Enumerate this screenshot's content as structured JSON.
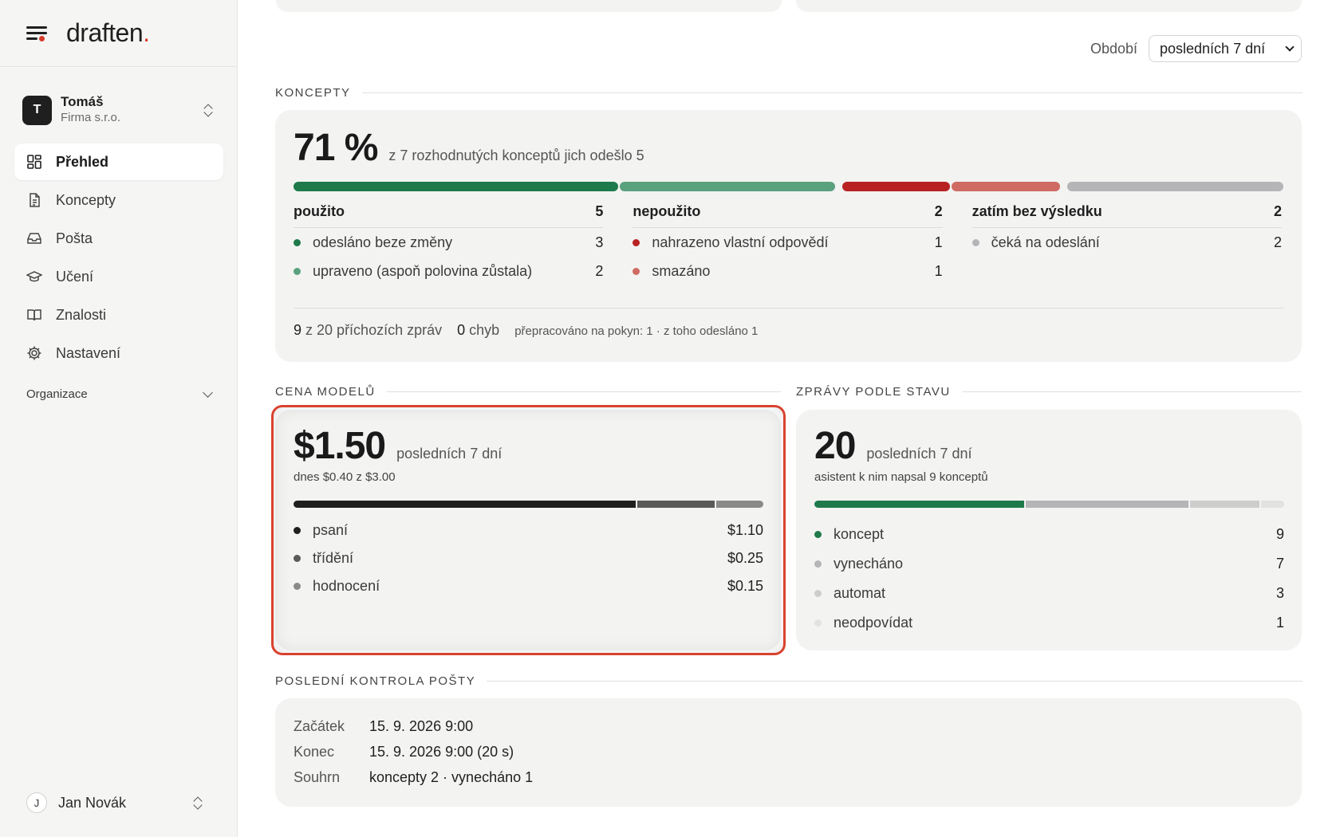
{
  "brand": {
    "name": "draften",
    "dot": "."
  },
  "account": {
    "initial": "T",
    "name": "Tomáš",
    "company": "Firma s.r.o."
  },
  "nav": [
    {
      "label": "Přehled",
      "icon": "dashboard-icon",
      "active": true
    },
    {
      "label": "Koncepty",
      "icon": "document-icon",
      "active": false
    },
    {
      "label": "Pošta",
      "icon": "inbox-icon",
      "active": false
    },
    {
      "label": "Učení",
      "icon": "graduation-cap-icon",
      "active": false
    },
    {
      "label": "Znalosti",
      "icon": "book-icon",
      "active": false
    },
    {
      "label": "Nastavení",
      "icon": "gear-icon",
      "active": false
    }
  ],
  "org": {
    "label": "Organizace"
  },
  "user": {
    "initial": "J",
    "name": "Jan Novák"
  },
  "period": {
    "label": "Období",
    "value": "posledních 7 dní"
  },
  "concepts": {
    "title": "KONCEPTY",
    "percent": "71 %",
    "summary": "z 7 rozhodnutých konceptů jich odešlo 5",
    "bar_segments": [
      {
        "key": "odeslano",
        "fraction": 3,
        "color": "#1e7a4a"
      },
      {
        "key": "upraveno",
        "fraction": 2,
        "color": "#5aa17e"
      },
      {
        "key": "nahrazeno",
        "fraction": 1,
        "color": "#b82222"
      },
      {
        "key": "smazano",
        "fraction": 1,
        "color": "#cf6b63"
      },
      {
        "key": "ceka",
        "fraction": 2,
        "color": "#b5b5b8"
      }
    ],
    "groups": [
      {
        "title": "použito",
        "total": "5",
        "items": [
          {
            "label": "odesláno beze změny",
            "value": "3",
            "color": "#1e7a4a"
          },
          {
            "label": "upraveno (aspoň polovina zůstala)",
            "value": "2",
            "color": "#5aa17e"
          }
        ]
      },
      {
        "title": "nepoužito",
        "total": "2",
        "items": [
          {
            "label": "nahrazeno vlastní odpovědí",
            "value": "1",
            "color": "#b82222"
          },
          {
            "label": "smazáno",
            "value": "1",
            "color": "#cf6b63"
          }
        ]
      },
      {
        "title": "zatím bez výsledku",
        "total": "2",
        "items": [
          {
            "label": "čeká na odeslání",
            "value": "2",
            "color": "#b5b5b8"
          }
        ]
      }
    ],
    "footer": {
      "incoming_num": "9",
      "incoming_text": "z 20 příchozích zpráv",
      "errors_num": "0",
      "errors_text": "chyb",
      "reworked": "přepracováno na pokyn: 1 · z toho odesláno 1"
    }
  },
  "cost": {
    "title": "CENA MODELŮ",
    "amount": "$1.50",
    "period": "posledních 7 dní",
    "today": "dnes $0.40 z $3.00",
    "items": [
      {
        "label": "psaní",
        "value": "$1.10",
        "amount": 1.1,
        "color": "#1f1f1f"
      },
      {
        "label": "třídění",
        "value": "$0.25",
        "amount": 0.25,
        "color": "#5a5a5a"
      },
      {
        "label": "hodnocení",
        "value": "$0.15",
        "amount": 0.15,
        "color": "#8a8a8a"
      }
    ]
  },
  "messages": {
    "title": "ZPRÁVY PODLE STAVU",
    "count": "20",
    "period": "posledních 7 dní",
    "note": "asistent k nim napsal 9 konceptů",
    "items": [
      {
        "label": "koncept",
        "value": "9",
        "amount": 9,
        "color": "#1e7a4a"
      },
      {
        "label": "vynecháno",
        "value": "7",
        "amount": 7,
        "color": "#b5b5b8"
      },
      {
        "label": "automat",
        "value": "3",
        "amount": 3,
        "color": "#cdcdcd"
      },
      {
        "label": "neodpovídat",
        "value": "1",
        "amount": 1,
        "color": "#e2e2e2"
      }
    ]
  },
  "last_check": {
    "title": "POSLEDNÍ KONTROLA POŠTY",
    "rows": [
      {
        "key": "Začátek",
        "value": "15. 9. 2026 9:00"
      },
      {
        "key": "Konec",
        "value": "15. 9. 2026 9:00 (20 s)"
      },
      {
        "key": "Souhrn",
        "value": "koncepty 2 · vynecháno 1"
      }
    ]
  }
}
